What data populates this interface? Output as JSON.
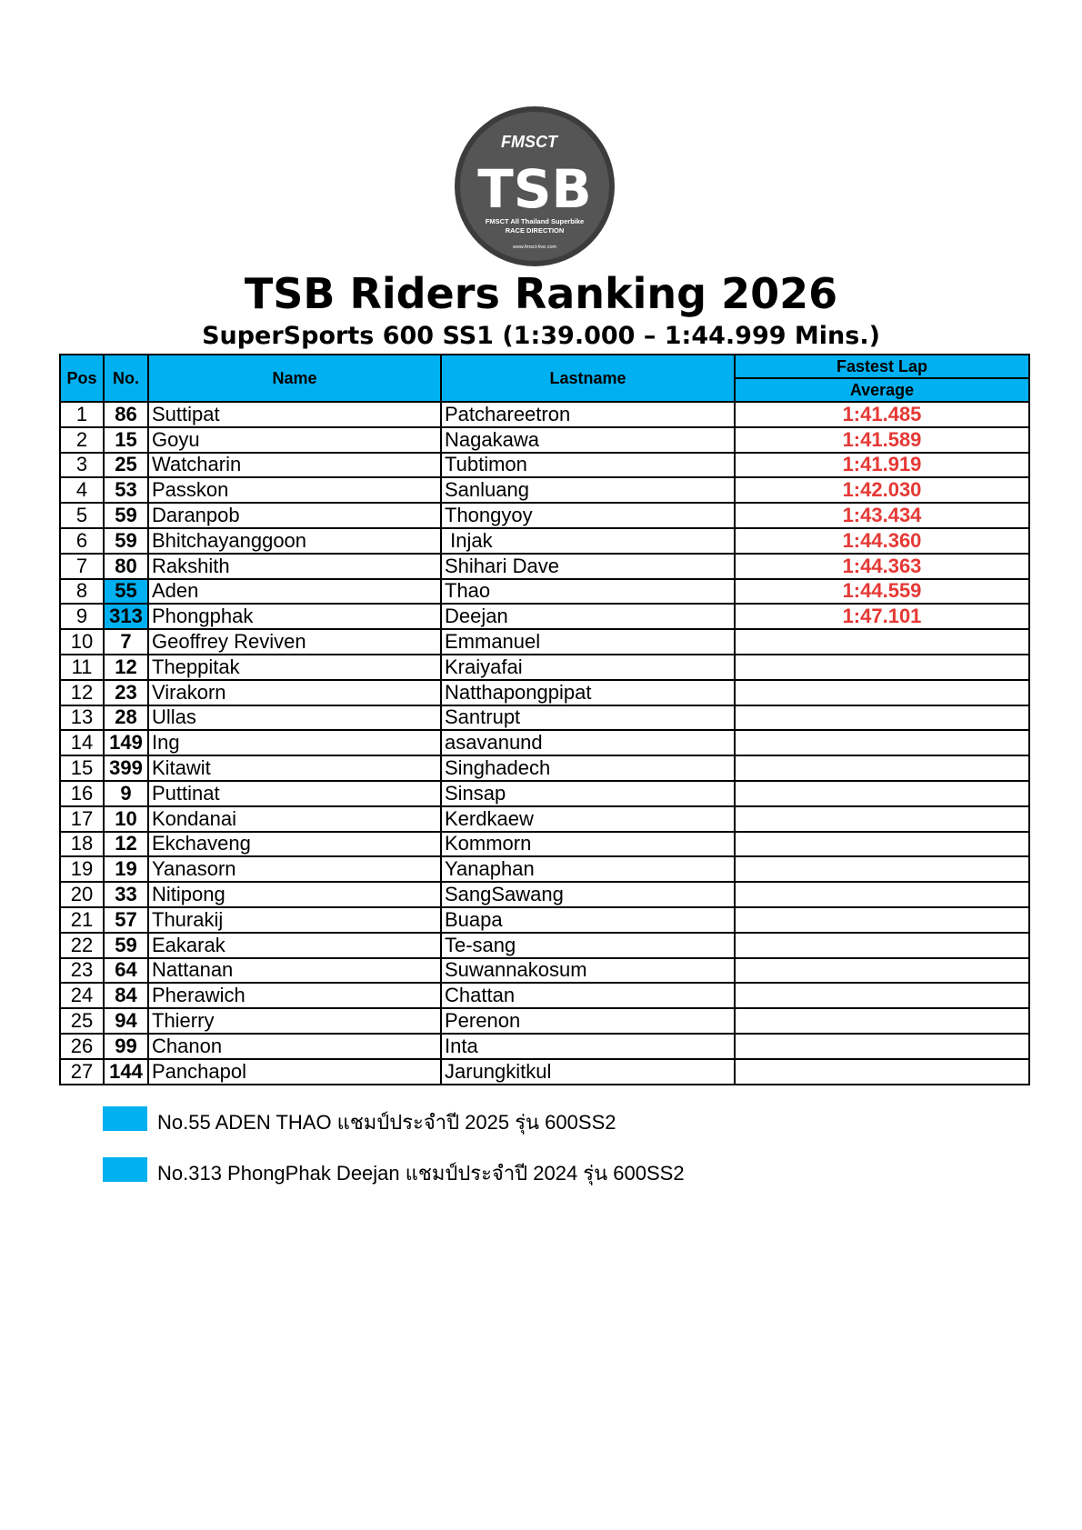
{
  "logo": {
    "brand": "FMSCT",
    "mark": "TSB",
    "line1": "FMSCT All Thailand Superbike",
    "line2": "RACE DIRECTION",
    "url": "www.fmsct-live.com"
  },
  "header": {
    "title": "TSB Riders Ranking 2026",
    "subtitle": "SuperSports 600 SS1 (1:39.000 – 1:44.999 Mins.)"
  },
  "table": {
    "columns": [
      "Pos",
      "No.",
      "Name",
      "Lastname"
    ],
    "lap_header": "Fastest Lap",
    "lap_subheader": "Average",
    "highlight_color": "#00b0f0",
    "rows": [
      {
        "pos": 1,
        "no": 86,
        "name": "Suttipat",
        "lastname": "Patchareetron",
        "average": "1:41.485",
        "highlight": false
      },
      {
        "pos": 2,
        "no": 15,
        "name": "Goyu",
        "lastname": "Nagakawa",
        "average": "1:41.589",
        "highlight": false
      },
      {
        "pos": 3,
        "no": 25,
        "name": "Watcharin",
        "lastname": "Tubtimon",
        "average": "1:41.919",
        "highlight": false
      },
      {
        "pos": 4,
        "no": 53,
        "name": "Passkon",
        "lastname": "Sanluang",
        "average": "1:42.030",
        "highlight": false
      },
      {
        "pos": 5,
        "no": 59,
        "name": "Daranpob",
        "lastname": "Thongyoy",
        "average": "1:43.434",
        "highlight": false
      },
      {
        "pos": 6,
        "no": 59,
        "name": "Bhitchayanggoon",
        "lastname": " Injak",
        "average": "1:44.360",
        "highlight": false
      },
      {
        "pos": 7,
        "no": 80,
        "name": "Rakshith",
        "lastname": "Shihari Dave",
        "average": "1:44.363",
        "highlight": false
      },
      {
        "pos": 8,
        "no": 55,
        "name": "Aden",
        "lastname": "Thao",
        "average": "1:44.559",
        "highlight": true
      },
      {
        "pos": 9,
        "no": 313,
        "name": "Phongphak",
        "lastname": "Deejan",
        "average": "1:47.101",
        "highlight": true
      },
      {
        "pos": 10,
        "no": 7,
        "name": "Geoffrey Reviven",
        "lastname": "Emmanuel",
        "average": null,
        "highlight": false
      },
      {
        "pos": 11,
        "no": 12,
        "name": "Theppitak",
        "lastname": "Kraiyafai",
        "average": null,
        "highlight": false
      },
      {
        "pos": 12,
        "no": 23,
        "name": "Virakorn",
        "lastname": "Natthapongpipat",
        "average": null,
        "highlight": false
      },
      {
        "pos": 13,
        "no": 28,
        "name": "Ullas",
        "lastname": "Santrupt",
        "average": null,
        "highlight": false
      },
      {
        "pos": 14,
        "no": 149,
        "name": "Ing",
        "lastname": "asavanund",
        "average": null,
        "highlight": false
      },
      {
        "pos": 15,
        "no": 399,
        "name": "Kitawit",
        "lastname": "Singhadech",
        "average": null,
        "highlight": false
      },
      {
        "pos": 16,
        "no": 9,
        "name": "Puttinat",
        "lastname": "Sinsap",
        "average": null,
        "highlight": false
      },
      {
        "pos": 17,
        "no": 10,
        "name": "Kondanai",
        "lastname": "Kerdkaew",
        "average": null,
        "highlight": false
      },
      {
        "pos": 18,
        "no": 12,
        "name": "Ekchaveng",
        "lastname": "Kommorn",
        "average": null,
        "highlight": false
      },
      {
        "pos": 19,
        "no": 19,
        "name": "Yanasorn",
        "lastname": "Yanaphan",
        "average": null,
        "highlight": false
      },
      {
        "pos": 20,
        "no": 33,
        "name": "Nitipong",
        "lastname": "SangSawang",
        "average": null,
        "highlight": false
      },
      {
        "pos": 21,
        "no": 57,
        "name": "Thurakij",
        "lastname": "Buapa",
        "average": null,
        "highlight": false
      },
      {
        "pos": 22,
        "no": 59,
        "name": "Eakarak",
        "lastname": "Te-sang",
        "average": null,
        "highlight": false
      },
      {
        "pos": 23,
        "no": 64,
        "name": "Nattanan",
        "lastname": "Suwannakosum",
        "average": null,
        "highlight": false
      },
      {
        "pos": 24,
        "no": 84,
        "name": "Pherawich",
        "lastname": "Chattan",
        "average": null,
        "highlight": false
      },
      {
        "pos": 25,
        "no": 94,
        "name": "Thierry",
        "lastname": "Perenon",
        "average": null,
        "highlight": false
      },
      {
        "pos": 26,
        "no": 99,
        "name": "Chanon",
        "lastname": "Inta",
        "average": null,
        "highlight": false
      },
      {
        "pos": 27,
        "no": 144,
        "name": "Panchapol",
        "lastname": "Jarungkitkul",
        "average": null,
        "highlight": false
      }
    ]
  },
  "legend": [
    "No.55 ADEN THAO แชมป์ประจำปี 2025 รุ่น 600SS2",
    "No.313 PhongPhak Deejan แชมป์ประจำปี 2024 รุ่น 600SS2"
  ]
}
